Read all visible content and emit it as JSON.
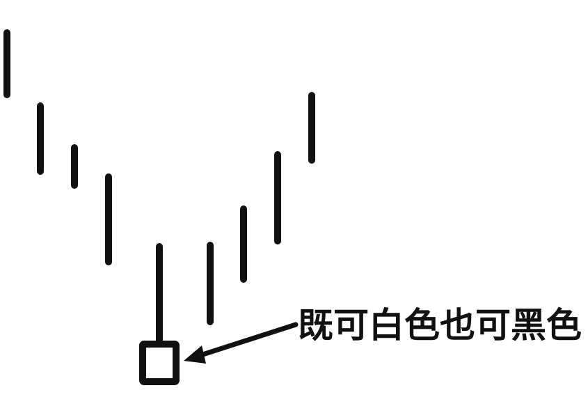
{
  "annotation": {
    "label": "既可白色也可黑色"
  },
  "colors": {
    "ink": "#111111",
    "background": "#ffffff",
    "candle_body_fill": "#ffffff"
  },
  "icons": {
    "candle_body": "hollow-square-candle-icon",
    "pointer": "arrow-left-icon"
  }
}
